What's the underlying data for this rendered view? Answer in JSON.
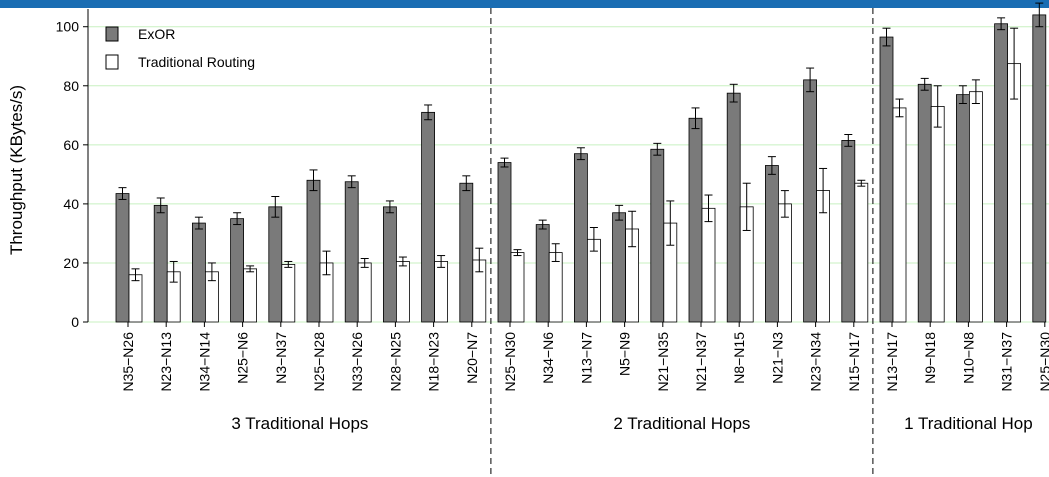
{
  "chart_data": {
    "type": "bar",
    "y_label": "Throughput  (KBytes/s)",
    "categories": [
      "N35−N26",
      "N23−N13",
      "N34−N14",
      "N25−N6",
      "N3−N37",
      "N25−N28",
      "N33−N26",
      "N28−N25",
      "N18−N23",
      "N20−N7",
      "N25−N30",
      "N34−N6",
      "N13−N7",
      "N5−N9",
      "N21−N35",
      "N21−N37",
      "N8−N15",
      "N21−N3",
      "N23−N34",
      "N15−N17",
      "N13−N17",
      "N9−N18",
      "N10−N8",
      "N31−N37",
      "N25−N30"
    ],
    "series": [
      {
        "name": "ExOR",
        "color": "#7a7a7a",
        "values": [
          43.5,
          39.5,
          33.5,
          35,
          39,
          48,
          47.5,
          39,
          71,
          47,
          54,
          33,
          57,
          37,
          58.5,
          69,
          77.5,
          53,
          82,
          61.5,
          96.5,
          80.5,
          77,
          101,
          104
        ],
        "errors": [
          2,
          2.5,
          2,
          2,
          3.5,
          3.5,
          2,
          2,
          2.5,
          2.5,
          1.5,
          1.5,
          2,
          2.5,
          2,
          3.5,
          3,
          3,
          4,
          2,
          3,
          2,
          3,
          2,
          4
        ]
      },
      {
        "name": "Traditional Routing",
        "color": "#ffffff",
        "values": [
          16,
          17,
          17,
          18,
          19.5,
          20,
          20,
          20.5,
          20.5,
          21,
          23.5,
          23.5,
          28,
          31.5,
          33.5,
          38.5,
          39,
          40,
          44.5,
          47,
          72.5,
          73,
          78,
          87.5,
          null
        ],
        "errors": [
          2,
          3.5,
          3,
          1,
          1,
          4,
          1.5,
          1.5,
          2,
          4,
          1,
          3,
          4,
          6,
          7.5,
          4.5,
          8,
          4.5,
          7.5,
          1,
          3,
          7,
          4,
          12,
          null
        ]
      }
    ],
    "groups": [
      {
        "label": "3 Traditional Hops",
        "start": 0,
        "end": 9
      },
      {
        "label": "2 Traditional Hops",
        "start": 10,
        "end": 19
      },
      {
        "label": "1 Traditional Hop",
        "start": 20,
        "end": 24
      }
    ],
    "ylim": [
      0,
      106
    ],
    "yticks": [
      0,
      20,
      40,
      60,
      80,
      100
    ],
    "grid": true,
    "grid_color": "#c8f0c0",
    "legend": "upper left"
  }
}
